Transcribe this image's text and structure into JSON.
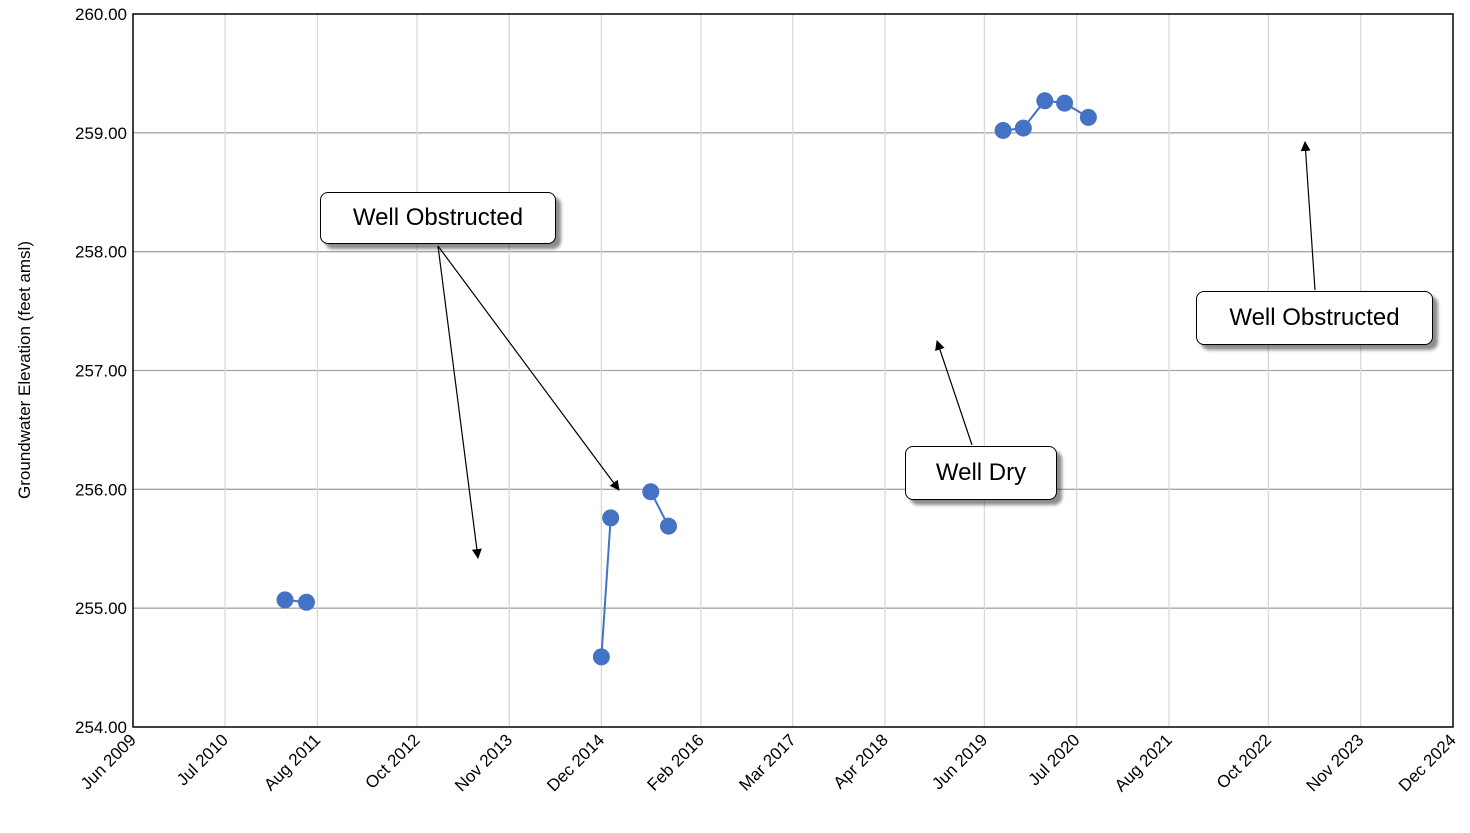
{
  "chart_data": {
    "type": "line",
    "title": "",
    "xlabel": "",
    "ylabel": "Groundwater Elevation (feet amsl)",
    "ylim": [
      254.0,
      260.0
    ],
    "xlim": [
      "2009-06-01",
      "2024-12-01"
    ],
    "yticks": [
      "254.00",
      "255.00",
      "256.00",
      "257.00",
      "258.00",
      "259.00",
      "260.00"
    ],
    "xticks": [
      {
        "date": "2009-06-01",
        "label": "Jun 2009"
      },
      {
        "date": "2010-07-01",
        "label": "Jul 2010"
      },
      {
        "date": "2011-08-01",
        "label": "Aug 2011"
      },
      {
        "date": "2012-10-01",
        "label": "Oct 2012"
      },
      {
        "date": "2013-11-01",
        "label": "Nov 2013"
      },
      {
        "date": "2014-12-01",
        "label": "Dec 2014"
      },
      {
        "date": "2016-02-01",
        "label": "Feb 2016"
      },
      {
        "date": "2017-03-01",
        "label": "Mar 2017"
      },
      {
        "date": "2018-04-01",
        "label": "Apr 2018"
      },
      {
        "date": "2019-06-01",
        "label": "Jun 2019"
      },
      {
        "date": "2020-07-01",
        "label": "Jul 2020"
      },
      {
        "date": "2021-08-01",
        "label": "Aug 2021"
      },
      {
        "date": "2022-10-01",
        "label": "Oct 2022"
      },
      {
        "date": "2023-11-01",
        "label": "Nov 2023"
      },
      {
        "date": "2024-12-01",
        "label": "Dec 2024"
      }
    ],
    "grid": true,
    "series_color": "#4472C4",
    "segments": [
      [
        {
          "x": "2011-03-15",
          "y": 255.07
        },
        {
          "x": "2011-06-15",
          "y": 255.05
        }
      ],
      [
        {
          "x": "2014-12-01",
          "y": 254.59
        },
        {
          "x": "2015-01-10",
          "y": 255.76
        }
      ],
      [
        {
          "x": "2015-07-01",
          "y": 255.98
        },
        {
          "x": "2015-09-15",
          "y": 255.69
        }
      ],
      [
        {
          "x": "2019-08-20",
          "y": 259.02
        },
        {
          "x": "2019-11-15",
          "y": 259.04
        },
        {
          "x": "2020-02-15",
          "y": 259.27
        },
        {
          "x": "2020-05-10",
          "y": 259.25
        },
        {
          "x": "2020-08-20",
          "y": 259.13
        }
      ]
    ],
    "annotations": [
      {
        "text": "Well Obstructed"
      },
      {
        "text": "Well Dry"
      },
      {
        "text": "Well Obstructed"
      }
    ]
  }
}
